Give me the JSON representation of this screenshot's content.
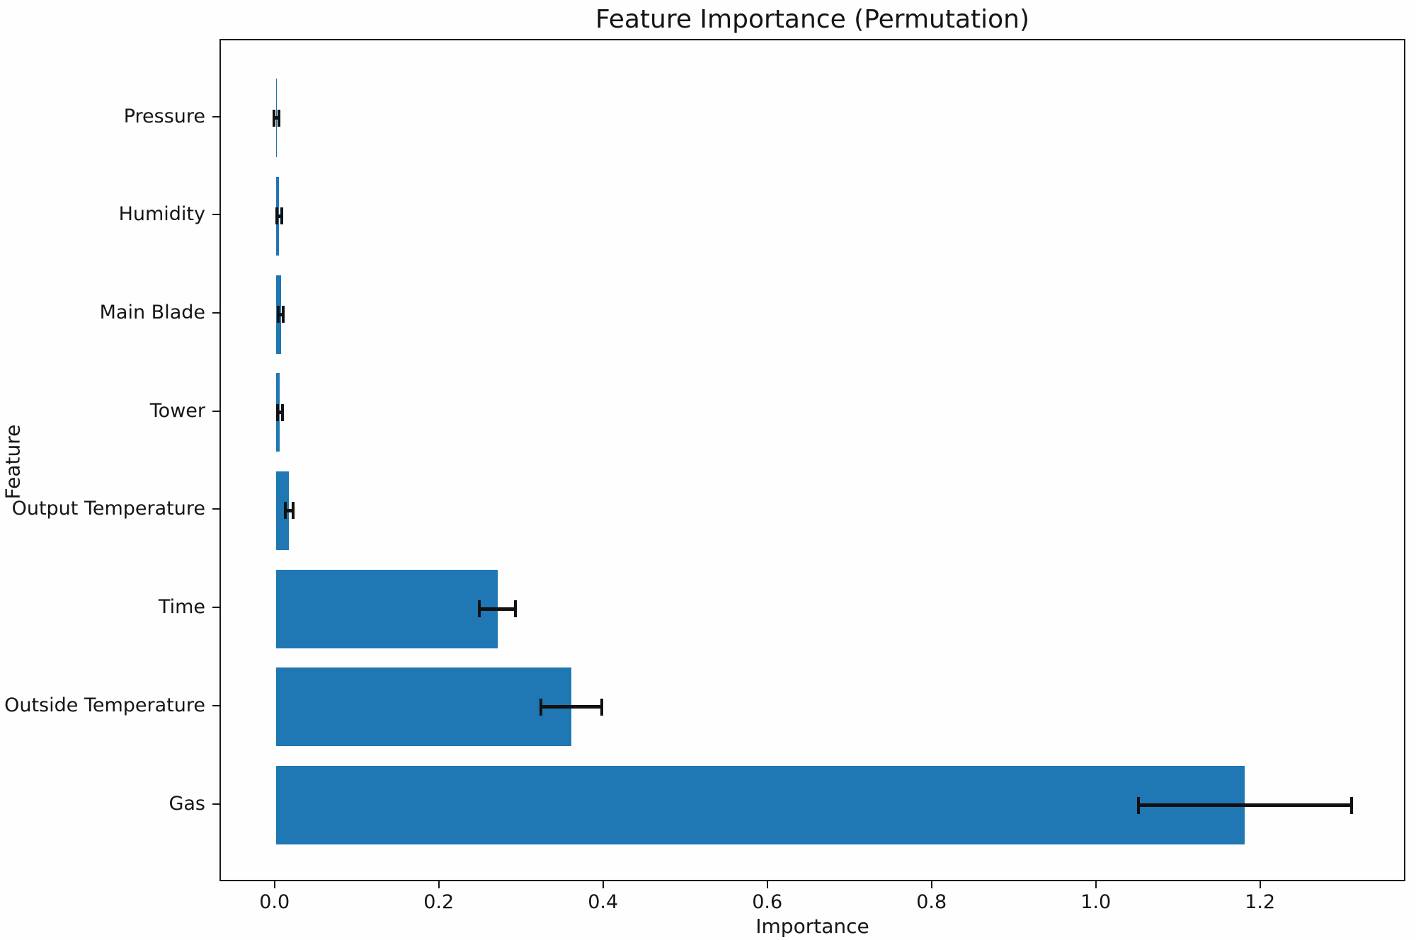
{
  "chart_data": {
    "type": "bar",
    "orientation": "horizontal",
    "title": "Feature Importance (Permutation)",
    "xlabel": "Importance",
    "ylabel": "Feature",
    "categories": [
      "Pressure",
      "Humidity",
      "Main Blade",
      "Tower",
      "Output Temperature",
      "Time",
      "Outside Temperature",
      "Gas"
    ],
    "series": [
      {
        "name": "Permutation importance",
        "values": [
          0.001,
          0.004,
          0.006,
          0.005,
          0.016,
          0.27,
          0.36,
          1.18
        ],
        "errors": [
          0.003,
          0.003,
          0.003,
          0.003,
          0.005,
          0.022,
          0.037,
          0.13
        ]
      }
    ],
    "xtick_labels": [
      "0.0",
      "0.2",
      "0.4",
      "0.6",
      "0.8",
      "1.0",
      "1.2"
    ],
    "xtick_values": [
      0.0,
      0.2,
      0.4,
      0.6,
      0.8,
      1.0,
      1.2
    ],
    "xlim": [
      -0.067,
      1.377
    ],
    "grid": false,
    "legend_visible": false,
    "bar_color": "#1f77b4",
    "error_color": "#111111"
  }
}
